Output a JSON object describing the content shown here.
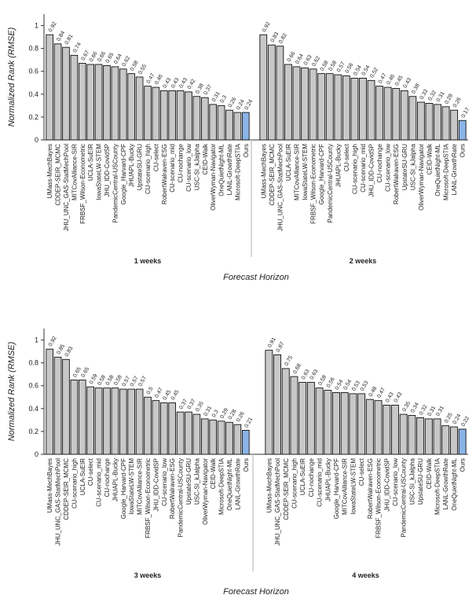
{
  "chart_data": [
    {
      "type": "bar",
      "ylabel": "Normalized Rank (RMSE)",
      "xlabel": "Forecast Horizon",
      "ylim": [
        0,
        1.1
      ],
      "yticks": [
        0,
        0.2,
        0.4,
        0.6,
        0.8,
        1
      ],
      "ytick_labels": [
        "0",
        "0.2",
        "0.4",
        "0.6",
        "0.8",
        "1"
      ],
      "colors": {
        "bar": "#c8c8c8",
        "ours": "#8ab4e6"
      },
      "panels": [
        {
          "label": "1 weeks",
          "categories": [
            "UMass-MechBayes",
            "CDDEP-SEIR_MCMC",
            "JHU_UNC_GAS-StatMechPool",
            "MITCovAlliance-SIR",
            "FRBSF_Wilson-Econometric",
            "UCLA-SuEIR",
            "IowaStateLW-STEM",
            "JHU_IDD-CovidSP",
            "PandemicCentral-USCounty",
            "Google_Harvard-CPF",
            "JHUAPL-Bucky",
            "UpstateSU-GRU",
            "CU-scenario_high",
            "CU-select",
            "RobertWalraven-ESG",
            "CU-scenario_mid",
            "CU-nochange",
            "CU-scenario_low",
            "USC-SI_kJalpha",
            "CEID-Walk",
            "OliverWyman-Navigator",
            "OneQuietNight-ML",
            "LANL-GrowthRate",
            "Microsoft-DeepSTIA",
            "Ours"
          ],
          "values": [
            0.92,
            0.84,
            0.81,
            0.74,
            0.67,
            0.66,
            0.66,
            0.65,
            0.64,
            0.62,
            0.58,
            0.55,
            0.47,
            0.46,
            0.43,
            0.43,
            0.43,
            0.42,
            0.38,
            0.37,
            0.31,
            0.3,
            0.26,
            0.24,
            0.24
          ],
          "value_labels": [
            "0.92",
            "0.84",
            "0.81",
            "0.74",
            "0.67",
            "0.66",
            "0.66",
            "0.65",
            "0.64",
            "0.62",
            "0.58",
            "0.55",
            "0.47",
            "0.46",
            "0.43",
            "0.43",
            "0.43",
            "0.42",
            "0.38",
            "0.37",
            "0.31",
            "0.3",
            "0.26",
            "0.24",
            "0.24"
          ]
        },
        {
          "label": "2 weeks",
          "categories": [
            "UMass-MechBayes",
            "CDDEP-SEIR_MCMC",
            "JHU_UNC_GAS-StatMechPool",
            "UCLA-SuEIR",
            "MITCovAlliance-SIR",
            "IowaStateLW-STEM",
            "FRBSF_Wilson-Econometric",
            "Google_Harvard-CPF",
            "PandemicCentral-USCounty",
            "JHUAPL-Bucky",
            "CU-select",
            "CU-scenario_high",
            "CU-scenario_mid",
            "JHU_IDD-CovidSP",
            "CU-nochange",
            "CU-scenario_low",
            "RobertWalraven-ESG",
            "UpstateSU-GRU",
            "USC-SI_kJalpha",
            "OliverWyman-Navigator",
            "CEID-Walk",
            "OneQuietNight-ML",
            "Microsoft-DeepSTIA",
            "LANL-GrowthRate",
            "Ours"
          ],
          "values": [
            0.92,
            0.83,
            0.82,
            0.66,
            0.64,
            0.63,
            0.62,
            0.58,
            0.58,
            0.57,
            0.56,
            0.54,
            0.54,
            0.52,
            0.47,
            0.46,
            0.45,
            0.43,
            0.38,
            0.33,
            0.32,
            0.31,
            0.29,
            0.26,
            0.17
          ],
          "value_labels": [
            "0.92",
            "0.83",
            "0.82",
            "0.66",
            "0.64",
            "0.63",
            "0.62",
            "0.58",
            "0.58",
            "0.57",
            "0.56",
            "0.54",
            "0.54",
            "0.52",
            "0.47",
            "0.46",
            "0.45",
            "0.43",
            "0.38",
            "0.33",
            "0.32",
            "0.31",
            "0.29",
            "0.26",
            "0.17"
          ]
        },
        {
          "label": "3 weeks",
          "categories": [
            "UMass-MechBayes",
            "JHU_UNC_GAS-StatMechPool",
            "CDDEP-SEIR_MCMC",
            "CU-scenario_high",
            "UCLA-SuEIR",
            "CU-select",
            "CU-scenario_mid",
            "CU-nochange",
            "JHUAPL-Bucky",
            "Google_Harvard-CPF",
            "IowaStateLW-STEM",
            "MITCovAlliance-SIR",
            "FRBSF_Wilson-Econometric",
            "JHU_IDD-CovidSP",
            "CU-scenario_low",
            "RobertWalraven-ESG",
            "PandemicCentral-USCounty",
            "UpstateSU-GRU",
            "USC-SI_kJalpha",
            "OliverWyman-Navigator",
            "CEID-Walk",
            "Microsoft-DeepSTIA",
            "OneQuietNight-ML",
            "LANL-GrowthRate",
            "Ours"
          ],
          "values": [
            0.92,
            0.85,
            0.83,
            0.65,
            0.65,
            0.59,
            0.58,
            0.58,
            0.58,
            0.57,
            0.57,
            0.57,
            0.5,
            0.47,
            0.45,
            0.45,
            0.37,
            0.37,
            0.35,
            0.31,
            0.3,
            0.29,
            0.28,
            0.26,
            0.21
          ],
          "value_labels": [
            "0.92",
            "0.85",
            "0.83",
            "0.65",
            "0.65",
            "0.59",
            "0.58",
            "0.58",
            "0.58",
            "0.57",
            "0.57",
            "0.57",
            "0.5",
            "0.47",
            "0.45",
            "0.45",
            "0.37",
            "0.37",
            "0.35",
            "0.31",
            "0.3",
            "0.29",
            "0.28",
            "0.26",
            "0.21"
          ]
        },
        {
          "label": "4 weeks",
          "categories": [
            "UMass-MechBayes",
            "JHU_UNC_GAS-StatMechPool",
            "CDDEP-SEIR_MCMC",
            "CU-scenario_high",
            "UCLA-SuEIR",
            "CU-nochange",
            "CU-scenario_mid",
            "JHUAPL-Bucky",
            "Google_Harvard-CPF",
            "MITCovAlliance-SIR",
            "IowaStateLW-STEM",
            "CU-select",
            "RobertWalraven-ESG",
            "FRBSF_Wilson-Econometric",
            "JHU_IDD-CovidSP",
            "CU-scenario_low",
            "PandemicCentral-USCounty",
            "USC-SI_kJalpha",
            "UpstateSU-GRU",
            "CEID-Walk",
            "Microsoft-DeepSTIA",
            "LANL-GrowthRate",
            "OneQuietNight-ML",
            "Ours"
          ],
          "values": [
            0.91,
            0.87,
            0.75,
            0.68,
            0.63,
            0.63,
            0.58,
            0.56,
            0.54,
            0.54,
            0.53,
            0.53,
            0.48,
            0.47,
            0.43,
            0.43,
            0.35,
            0.34,
            0.32,
            0.31,
            0.31,
            0.25,
            0.24,
            0.22
          ],
          "value_labels": [
            "0.91",
            "0.87",
            "0.75",
            "0.68",
            "0.63",
            "0.63",
            "0.58",
            "0.56",
            "0.54",
            "0.54",
            "0.53",
            "0.53",
            "0.48",
            "0.47",
            "0.43",
            "0.43",
            "0.35",
            "0.34",
            "0.32",
            "0.31",
            "0.31",
            "0.25",
            "0.24",
            "0.22"
          ]
        }
      ]
    }
  ]
}
